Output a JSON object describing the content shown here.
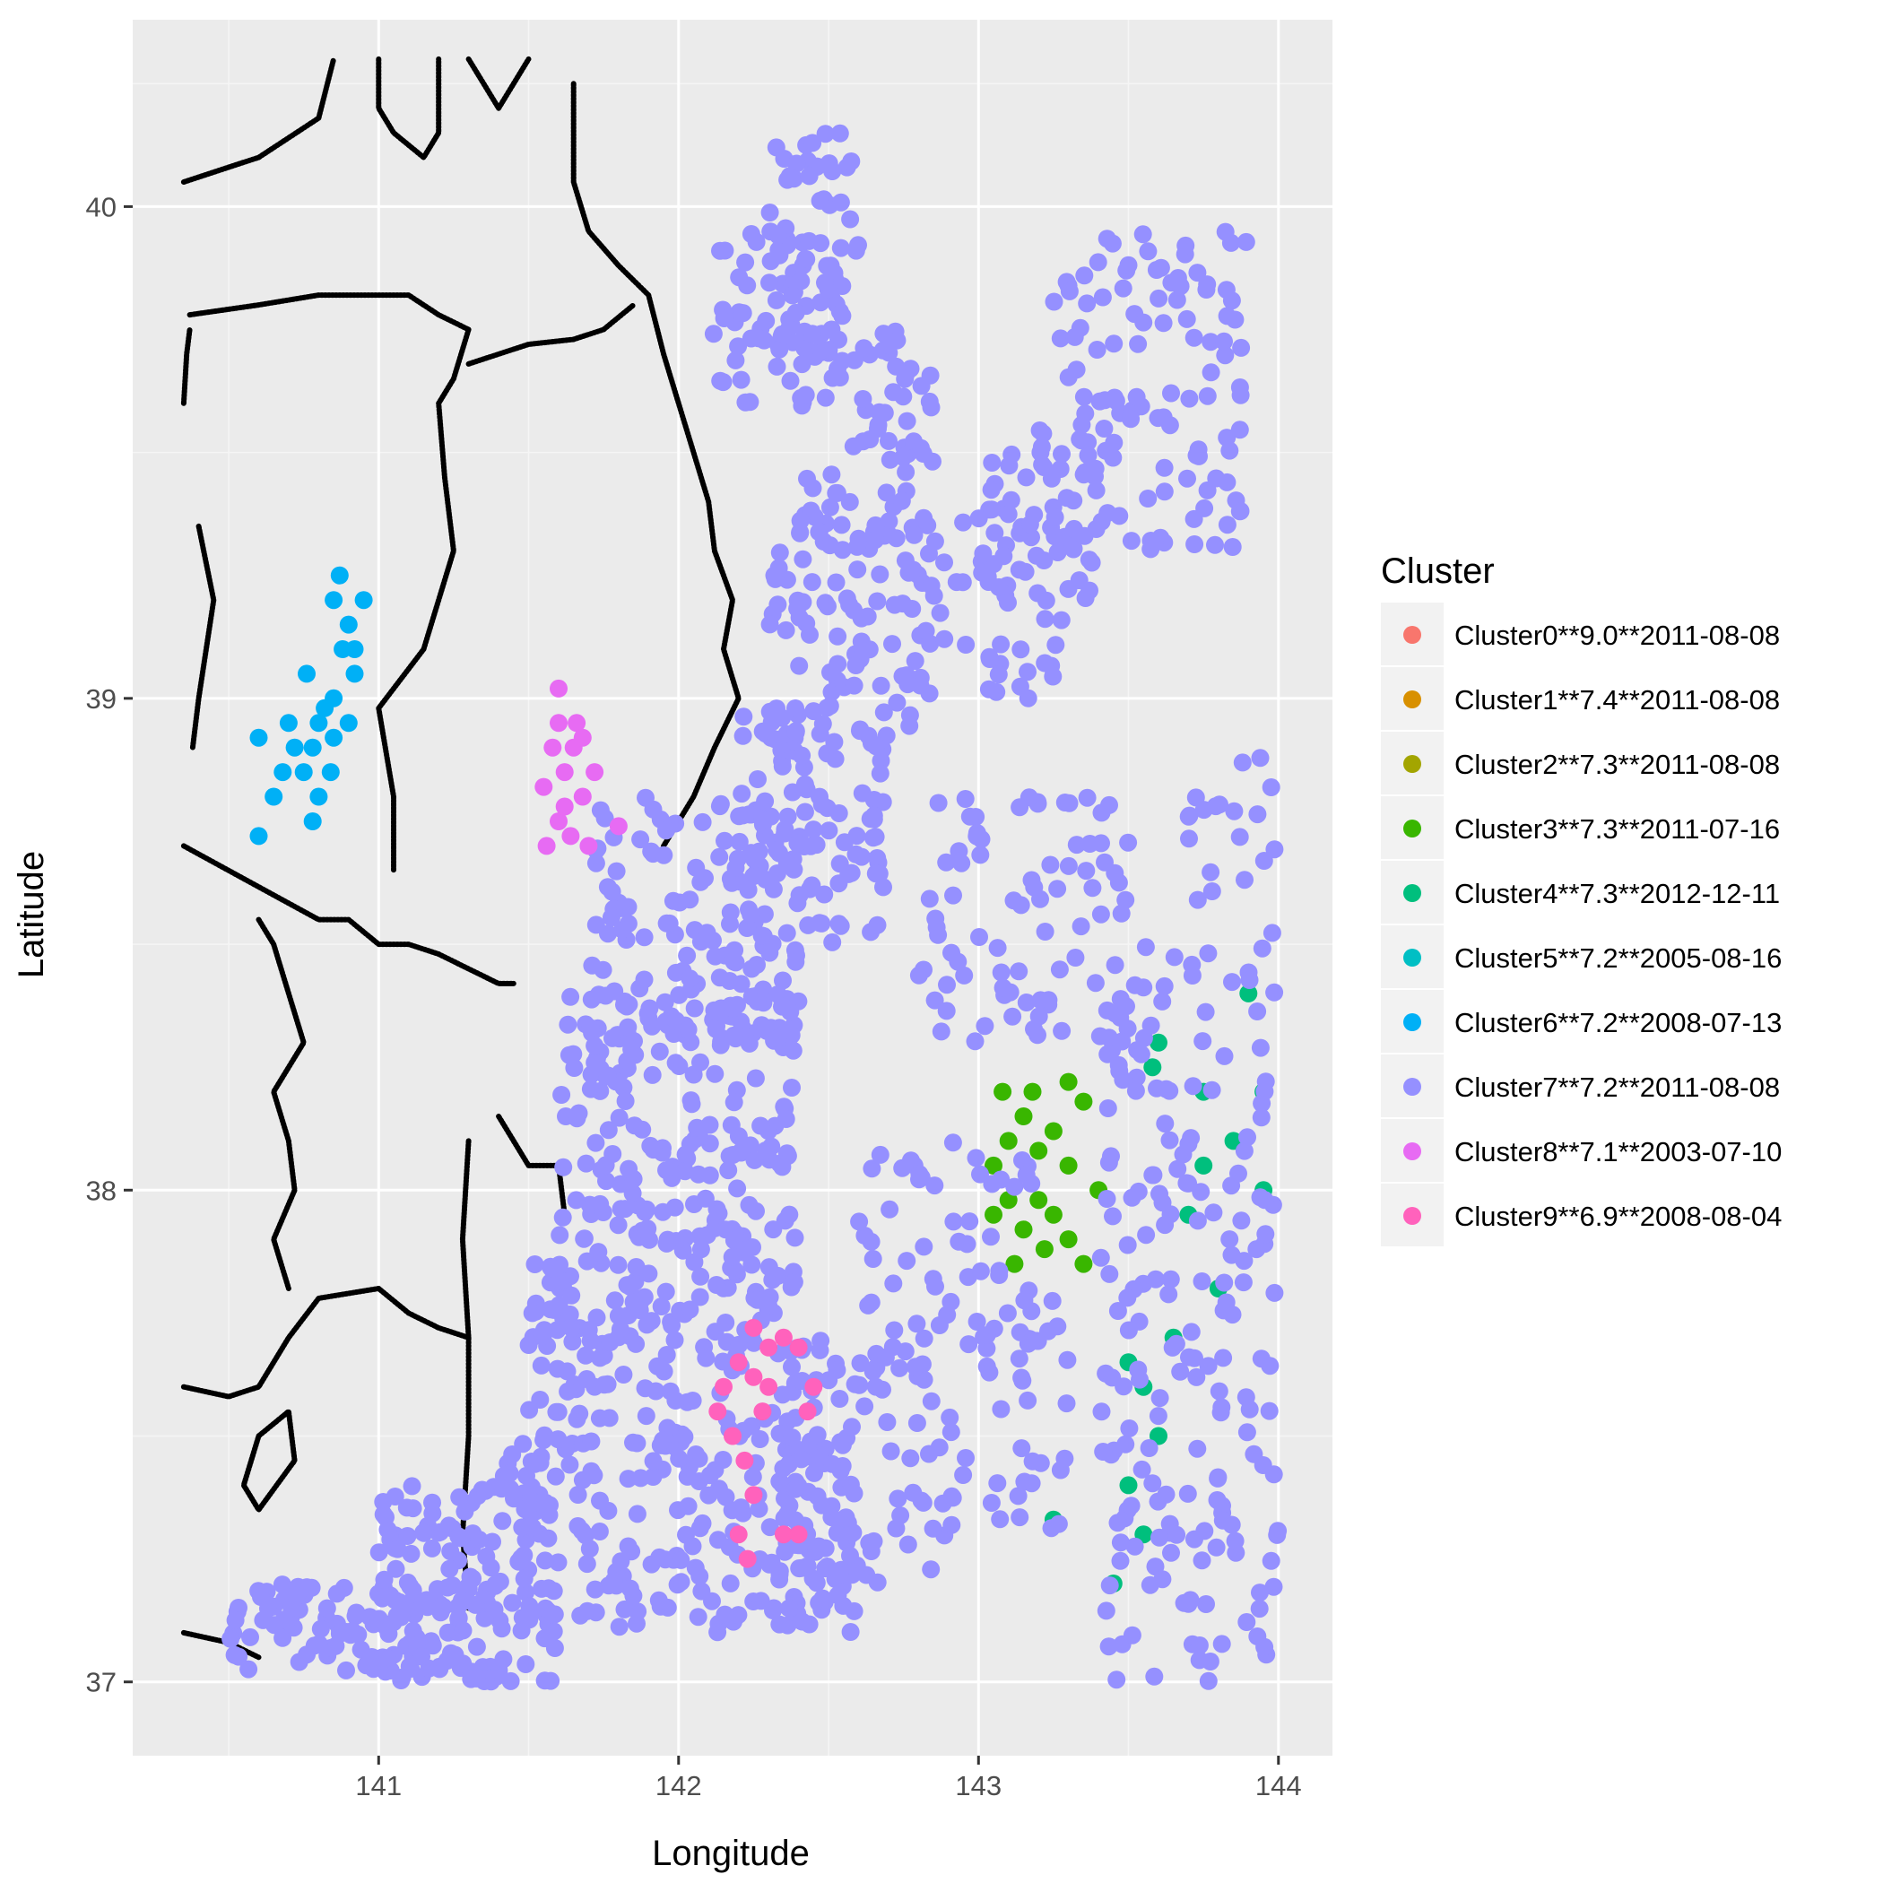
{
  "chart_data": {
    "type": "scatter",
    "title": "",
    "xlabel": "Longitude",
    "ylabel": "Latitude",
    "xlim": [
      140.18,
      144.18
    ],
    "ylim": [
      36.85,
      40.38
    ],
    "x_ticks": [
      141,
      142,
      143,
      144
    ],
    "y_ticks": [
      37,
      38,
      39,
      40
    ],
    "grid": true,
    "legend": {
      "title": "Cluster",
      "placement": "right"
    },
    "series": [
      {
        "name": "Cluster0**9.0**2011-08-08",
        "color": "#F8766D",
        "points": []
      },
      {
        "name": "Cluster1**7.4**2011-08-08",
        "color": "#D89000",
        "points": []
      },
      {
        "name": "Cluster2**7.3**2011-08-08",
        "color": "#A3A500",
        "points": []
      },
      {
        "name": "Cluster3**7.3**2011-07-16",
        "color": "#39B600",
        "points": [
          [
            143.05,
            38.05
          ],
          [
            143.1,
            38.1
          ],
          [
            143.15,
            38.15
          ],
          [
            143.2,
            38.08
          ],
          [
            143.25,
            38.12
          ],
          [
            143.3,
            38.05
          ],
          [
            143.35,
            38.18
          ],
          [
            143.1,
            37.98
          ],
          [
            143.15,
            37.92
          ],
          [
            143.2,
            37.98
          ],
          [
            143.25,
            37.95
          ],
          [
            143.3,
            37.9
          ],
          [
            143.05,
            37.95
          ],
          [
            143.12,
            37.85
          ],
          [
            143.22,
            37.88
          ],
          [
            143.3,
            38.22
          ],
          [
            143.18,
            38.2
          ],
          [
            143.4,
            38.0
          ],
          [
            143.35,
            37.85
          ],
          [
            143.08,
            38.2
          ]
        ]
      },
      {
        "name": "Cluster4**7.3**2012-12-11",
        "color": "#00BF7D",
        "points": [
          [
            143.6,
            38.3
          ],
          [
            143.75,
            38.2
          ],
          [
            143.85,
            38.1
          ],
          [
            143.95,
            38.0
          ],
          [
            143.7,
            37.95
          ],
          [
            143.8,
            37.8
          ],
          [
            143.65,
            37.7
          ],
          [
            143.55,
            37.6
          ],
          [
            143.6,
            37.5
          ],
          [
            143.5,
            37.4
          ],
          [
            143.55,
            37.3
          ],
          [
            143.45,
            37.2
          ],
          [
            143.9,
            38.4
          ],
          [
            143.95,
            38.2
          ],
          [
            143.75,
            38.05
          ],
          [
            143.58,
            38.25
          ],
          [
            143.25,
            37.33
          ],
          [
            143.5,
            37.65
          ]
        ]
      },
      {
        "name": "Cluster5**7.2**2005-08-16",
        "color": "#00BFC4",
        "points": []
      },
      {
        "name": "Cluster6**7.2**2008-07-13",
        "color": "#00B0F6",
        "points": [
          [
            140.85,
            39.2
          ],
          [
            140.9,
            39.15
          ],
          [
            140.88,
            39.1
          ],
          [
            140.92,
            39.05
          ],
          [
            140.85,
            39.0
          ],
          [
            140.8,
            38.95
          ],
          [
            140.78,
            38.9
          ],
          [
            140.75,
            38.85
          ],
          [
            140.8,
            38.8
          ],
          [
            140.78,
            38.75
          ],
          [
            140.82,
            38.98
          ],
          [
            140.9,
            38.95
          ],
          [
            140.72,
            38.9
          ],
          [
            140.68,
            38.85
          ],
          [
            140.95,
            39.2
          ],
          [
            140.87,
            39.25
          ],
          [
            140.84,
            38.85
          ],
          [
            140.6,
            38.92
          ],
          [
            140.65,
            38.8
          ],
          [
            140.6,
            38.72
          ],
          [
            140.85,
            38.92
          ],
          [
            140.92,
            39.1
          ],
          [
            140.7,
            38.95
          ],
          [
            140.76,
            39.05
          ]
        ]
      },
      {
        "name": "Cluster7**7.2**2011-08-08",
        "color": "#9590FF",
        "ranges": [
          [
            142.3,
            142.6,
            39.7,
            40.15,
            60
          ],
          [
            142.1,
            142.5,
            39.6,
            39.95,
            50
          ],
          [
            142.4,
            142.85,
            39.3,
            39.75,
            80
          ],
          [
            143.2,
            143.9,
            39.3,
            39.95,
            120
          ],
          [
            143.0,
            143.4,
            39.2,
            39.55,
            50
          ],
          [
            142.8,
            143.3,
            39.0,
            39.4,
            50
          ],
          [
            142.3,
            142.8,
            38.9,
            39.35,
            80
          ],
          [
            142.2,
            142.7,
            38.5,
            39.0,
            100
          ],
          [
            141.7,
            142.4,
            38.3,
            38.8,
            140
          ],
          [
            141.6,
            142.4,
            37.9,
            38.4,
            180
          ],
          [
            141.5,
            142.4,
            37.5,
            37.9,
            160
          ],
          [
            141.4,
            142.6,
            37.1,
            37.5,
            220
          ],
          [
            140.5,
            141.4,
            37.0,
            37.2,
            120
          ],
          [
            141.0,
            141.6,
            37.0,
            37.4,
            120
          ],
          [
            142.3,
            142.9,
            37.2,
            37.7,
            80
          ],
          [
            142.6,
            143.2,
            37.6,
            38.1,
            60
          ],
          [
            142.8,
            143.5,
            38.3,
            38.8,
            80
          ],
          [
            143.4,
            144.0,
            37.0,
            38.5,
            200
          ],
          [
            142.9,
            143.3,
            37.3,
            37.8,
            40
          ],
          [
            143.7,
            144.0,
            38.5,
            38.9,
            20
          ]
        ],
        "points": []
      },
      {
        "name": "Cluster8**7.1**2003-07-10",
        "color": "#E76BF3",
        "points": [
          [
            141.6,
            38.95
          ],
          [
            141.65,
            38.9
          ],
          [
            141.62,
            38.85
          ],
          [
            141.68,
            38.8
          ],
          [
            141.6,
            38.75
          ],
          [
            141.64,
            38.72
          ],
          [
            141.7,
            38.7
          ],
          [
            141.58,
            38.9
          ],
          [
            141.66,
            38.95
          ],
          [
            141.6,
            39.02
          ],
          [
            141.55,
            38.82
          ],
          [
            141.72,
            38.85
          ],
          [
            141.56,
            38.7
          ],
          [
            141.8,
            38.74
          ],
          [
            141.68,
            38.92
          ],
          [
            141.62,
            38.78
          ]
        ]
      },
      {
        "name": "Cluster9**6.9**2008-08-04",
        "color": "#FF62BC",
        "points": [
          [
            142.25,
            37.72
          ],
          [
            142.3,
            37.68
          ],
          [
            142.35,
            37.7
          ],
          [
            142.2,
            37.65
          ],
          [
            142.15,
            37.6
          ],
          [
            142.25,
            37.62
          ],
          [
            142.3,
            37.6
          ],
          [
            142.4,
            37.68
          ],
          [
            142.45,
            37.6
          ],
          [
            142.18,
            37.5
          ],
          [
            142.22,
            37.45
          ],
          [
            142.25,
            37.38
          ],
          [
            142.2,
            37.3
          ],
          [
            142.23,
            37.25
          ],
          [
            142.35,
            37.3
          ],
          [
            142.4,
            37.3
          ],
          [
            142.43,
            37.55
          ],
          [
            142.13,
            37.55
          ],
          [
            142.28,
            37.55
          ]
        ]
      }
    ],
    "coastline": [
      [
        [
          140.35,
          40.05
        ],
        [
          140.5,
          40.08
        ],
        [
          140.6,
          40.1
        ],
        [
          140.8,
          40.18
        ],
        [
          140.85,
          40.3
        ]
      ],
      [
        [
          140.35,
          39.6
        ],
        [
          140.36,
          39.7
        ],
        [
          140.37,
          39.75
        ]
      ],
      [
        [
          140.37,
          39.78
        ],
        [
          140.6,
          39.8
        ],
        [
          140.8,
          39.82
        ],
        [
          141.1,
          39.82
        ],
        [
          141.2,
          39.78
        ],
        [
          141.3,
          39.75
        ]
      ],
      [
        [
          141.3,
          39.75
        ],
        [
          141.25,
          39.65
        ],
        [
          141.2,
          39.6
        ],
        [
          141.22,
          39.45
        ],
        [
          141.25,
          39.3
        ],
        [
          141.15,
          39.1
        ],
        [
          141.0,
          38.98
        ],
        [
          141.05,
          38.8
        ],
        [
          141.05,
          38.65
        ]
      ],
      [
        [
          140.35,
          38.7
        ],
        [
          140.5,
          38.65
        ],
        [
          140.65,
          38.6
        ],
        [
          140.8,
          38.55
        ],
        [
          140.9,
          38.55
        ],
        [
          141.0,
          38.5
        ],
        [
          141.1,
          38.5
        ],
        [
          141.2,
          38.48
        ],
        [
          141.3,
          38.45
        ],
        [
          141.4,
          38.42
        ],
        [
          141.45,
          38.42
        ]
      ],
      [
        [
          141.3,
          39.68
        ],
        [
          141.4,
          39.7
        ],
        [
          141.5,
          39.72
        ],
        [
          141.65,
          39.73
        ],
        [
          141.75,
          39.75
        ],
        [
          141.85,
          39.8
        ]
      ],
      [
        [
          141.65,
          40.25
        ],
        [
          141.65,
          40.05
        ],
        [
          141.7,
          39.95
        ],
        [
          141.8,
          39.88
        ],
        [
          141.9,
          39.82
        ],
        [
          141.95,
          39.7
        ],
        [
          142.0,
          39.6
        ],
        [
          142.05,
          39.5
        ],
        [
          142.1,
          39.4
        ],
        [
          142.12,
          39.3
        ],
        [
          142.18,
          39.2
        ],
        [
          142.15,
          39.1
        ],
        [
          142.2,
          39.0
        ],
        [
          142.12,
          38.9
        ],
        [
          142.05,
          38.8
        ],
        [
          141.95,
          38.7
        ]
      ],
      [
        [
          141.4,
          38.15
        ],
        [
          141.45,
          38.1
        ],
        [
          141.5,
          38.05
        ],
        [
          141.6,
          38.05
        ],
        [
          141.62,
          37.95
        ]
      ],
      [
        [
          141.3,
          38.1
        ],
        [
          141.28,
          37.9
        ],
        [
          141.3,
          37.7
        ],
        [
          141.3,
          37.5
        ],
        [
          141.28,
          37.3
        ],
        [
          141.3,
          37.15
        ]
      ],
      [
        [
          140.35,
          37.6
        ],
        [
          140.5,
          37.58
        ],
        [
          140.6,
          37.6
        ],
        [
          140.7,
          37.7
        ],
        [
          140.8,
          37.78
        ],
        [
          141.0,
          37.8
        ],
        [
          141.1,
          37.75
        ],
        [
          141.2,
          37.72
        ],
        [
          141.3,
          37.7
        ]
      ],
      [
        [
          140.35,
          37.1
        ],
        [
          140.5,
          37.08
        ],
        [
          140.6,
          37.05
        ]
      ],
      [
        [
          140.6,
          37.5
        ],
        [
          140.7,
          37.55
        ],
        [
          140.72,
          37.45
        ],
        [
          140.6,
          37.35
        ],
        [
          140.55,
          37.4
        ],
        [
          140.6,
          37.5
        ]
      ],
      [
        [
          140.6,
          38.55
        ],
        [
          140.65,
          38.5
        ],
        [
          140.7,
          38.4
        ],
        [
          140.75,
          38.3
        ],
        [
          140.65,
          38.2
        ],
        [
          140.7,
          38.1
        ],
        [
          140.72,
          38.0
        ],
        [
          140.65,
          37.9
        ],
        [
          140.7,
          37.8
        ]
      ],
      [
        [
          140.4,
          39.35
        ],
        [
          140.45,
          39.2
        ],
        [
          140.4,
          39.0
        ],
        [
          140.38,
          38.9
        ]
      ],
      [
        [
          141.0,
          40.3
        ],
        [
          141.0,
          40.2
        ],
        [
          141.05,
          40.15
        ],
        [
          141.15,
          40.1
        ],
        [
          141.2,
          40.15
        ],
        [
          141.2,
          40.3
        ]
      ],
      [
        [
          141.3,
          40.3
        ],
        [
          141.35,
          40.25
        ],
        [
          141.4,
          40.2
        ],
        [
          141.45,
          40.25
        ],
        [
          141.5,
          40.3
        ]
      ]
    ]
  }
}
